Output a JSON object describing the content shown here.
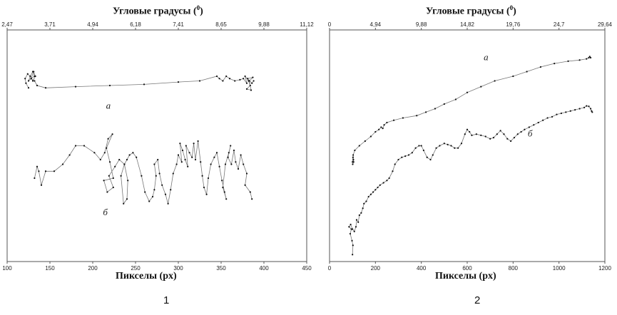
{
  "chart_data": [
    {
      "type": "line",
      "title": "Угловые градусы",
      "title_sup": "0",
      "xlabel": "Пикселы (px)",
      "figure_number": "1",
      "x_ticks": [
        "100",
        "150",
        "200",
        "250",
        "300",
        "350",
        "400",
        "450"
      ],
      "top_ticks": [
        "2,47",
        "3,71",
        "4,94",
        "6,18",
        "7,41",
        "8,65",
        "9,88",
        "11,12"
      ],
      "xlim": [
        100,
        450
      ],
      "ylim": [
        0,
        1
      ],
      "grid": false,
      "series": [
        {
          "label": "а",
          "points": [
            [
              125,
              0.75
            ],
            [
              122,
              0.77
            ],
            [
              121,
              0.79
            ],
            [
              124,
              0.81
            ],
            [
              127,
              0.8
            ],
            [
              125,
              0.78
            ],
            [
              128,
              0.79
            ],
            [
              132,
              0.8
            ],
            [
              130,
              0.82
            ],
            [
              127,
              0.8
            ],
            [
              130,
              0.78
            ],
            [
              133,
              0.8
            ],
            [
              131,
              0.82
            ],
            [
              128,
              0.79
            ],
            [
              132,
              0.78
            ],
            [
              135,
              0.76
            ],
            [
              145,
              0.75
            ],
            [
              180,
              0.755
            ],
            [
              220,
              0.76
            ],
            [
              260,
              0.765
            ],
            [
              300,
              0.775
            ],
            [
              325,
              0.78
            ],
            [
              345,
              0.8
            ],
            [
              348,
              0.79
            ],
            [
              352,
              0.78
            ],
            [
              356,
              0.8
            ],
            [
              360,
              0.79
            ],
            [
              366,
              0.78
            ],
            [
              372,
              0.785
            ],
            [
              376,
              0.79
            ],
            [
              380,
              0.77
            ],
            [
              378,
              0.8
            ],
            [
              382,
              0.78
            ],
            [
              384,
              0.76
            ],
            [
              380,
              0.745
            ],
            [
              385,
              0.74
            ],
            [
              383,
              0.78
            ],
            [
              387,
              0.795
            ],
            [
              381,
              0.79
            ],
            [
              386,
              0.77
            ],
            [
              388,
              0.78
            ]
          ]
        },
        {
          "label": "б",
          "points": [
            [
              132,
              0.36
            ],
            [
              135,
              0.41
            ],
            [
              137,
              0.39
            ],
            [
              140,
              0.33
            ],
            [
              145,
              0.39
            ],
            [
              155,
              0.39
            ],
            [
              165,
              0.42
            ],
            [
              173,
              0.46
            ],
            [
              180,
              0.5
            ],
            [
              190,
              0.5
            ],
            [
              202,
              0.47
            ],
            [
              209,
              0.44
            ],
            [
              214,
              0.47
            ],
            [
              218,
              0.53
            ],
            [
              223,
              0.55
            ],
            [
              216,
              0.49
            ],
            [
              220,
              0.43
            ],
            [
              224,
              0.36
            ],
            [
              213,
              0.35
            ],
            [
              217,
              0.3
            ],
            [
              224,
              0.32
            ],
            [
              219,
              0.37
            ],
            [
              226,
              0.41
            ],
            [
              231,
              0.44
            ],
            [
              237,
              0.42
            ],
            [
              241,
              0.35
            ],
            [
              240,
              0.27
            ],
            [
              236,
              0.25
            ],
            [
              233,
              0.37
            ],
            [
              237,
              0.42
            ],
            [
              240,
              0.44
            ],
            [
              243,
              0.46
            ],
            [
              247,
              0.47
            ],
            [
              251,
              0.45
            ],
            [
              257,
              0.37
            ],
            [
              261,
              0.3
            ],
            [
              266,
              0.26
            ],
            [
              270,
              0.28
            ],
            [
              272,
              0.31
            ],
            [
              274,
              0.37
            ],
            [
              272,
              0.42
            ],
            [
              276,
              0.44
            ],
            [
              278,
              0.38
            ],
            [
              281,
              0.33
            ],
            [
              285,
              0.29
            ],
            [
              288,
              0.25
            ],
            [
              291,
              0.31
            ],
            [
              294,
              0.38
            ],
            [
              298,
              0.42
            ],
            [
              300,
              0.46
            ],
            [
              304,
              0.43
            ],
            [
              302,
              0.51
            ],
            [
              305,
              0.48
            ],
            [
              308,
              0.44
            ],
            [
              311,
              0.41
            ],
            [
              309,
              0.5
            ],
            [
              313,
              0.47
            ],
            [
              316,
              0.45
            ],
            [
              318,
              0.51
            ],
            [
              320,
              0.44
            ],
            [
              323,
              0.52
            ],
            [
              326,
              0.43
            ],
            [
              328,
              0.37
            ],
            [
              330,
              0.32
            ],
            [
              333,
              0.29
            ],
            [
              335,
              0.36
            ],
            [
              338,
              0.42
            ],
            [
              342,
              0.45
            ],
            [
              345,
              0.47
            ],
            [
              348,
              0.41
            ],
            [
              351,
              0.35
            ],
            [
              354,
              0.3
            ],
            [
              356,
              0.27
            ],
            [
              352,
              0.32
            ],
            [
              355,
              0.42
            ],
            [
              359,
              0.47
            ],
            [
              361,
              0.5
            ],
            [
              358,
              0.45
            ],
            [
              362,
              0.42
            ],
            [
              365,
              0.48
            ],
            [
              367,
              0.43
            ],
            [
              370,
              0.4
            ],
            [
              373,
              0.46
            ],
            [
              376,
              0.42
            ],
            [
              380,
              0.38
            ],
            [
              378,
              0.33
            ],
            [
              384,
              0.3
            ],
            [
              386,
              0.27
            ]
          ]
        }
      ]
    },
    {
      "type": "line",
      "title": "Угловые градусы",
      "title_sup": "0",
      "xlabel": "Пикселы (px)",
      "figure_number": "2",
      "x_ticks": [
        "0",
        "200",
        "400",
        "600",
        "800",
        "1000",
        "1200"
      ],
      "top_ticks": [
        "0",
        "4,94",
        "9,88",
        "14,82",
        "19,76",
        "24,7",
        "29,64"
      ],
      "xlim": [
        0,
        1200
      ],
      "ylim": [
        0,
        1
      ],
      "grid": false,
      "series": [
        {
          "label": "а",
          "points": [
            [
              100,
              0.43
            ],
            [
              102,
              0.45
            ],
            [
              104,
              0.44
            ],
            [
              101,
              0.42
            ],
            [
              105,
              0.43
            ],
            [
              103,
              0.46
            ],
            [
              110,
              0.48
            ],
            [
              130,
              0.5
            ],
            [
              155,
              0.52
            ],
            [
              180,
              0.54
            ],
            [
              200,
              0.56
            ],
            [
              215,
              0.57
            ],
            [
              225,
              0.58
            ],
            [
              232,
              0.575
            ],
            [
              238,
              0.59
            ],
            [
              250,
              0.6
            ],
            [
              280,
              0.61
            ],
            [
              320,
              0.62
            ],
            [
              380,
              0.63
            ],
            [
              420,
              0.645
            ],
            [
              460,
              0.66
            ],
            [
              500,
              0.68
            ],
            [
              550,
              0.7
            ],
            [
              600,
              0.73
            ],
            [
              660,
              0.755
            ],
            [
              720,
              0.78
            ],
            [
              800,
              0.8
            ],
            [
              860,
              0.82
            ],
            [
              920,
              0.84
            ],
            [
              980,
              0.855
            ],
            [
              1040,
              0.865
            ],
            [
              1090,
              0.87
            ],
            [
              1120,
              0.875
            ],
            [
              1130,
              0.88
            ],
            [
              1134,
              0.885
            ],
            [
              1138,
              0.88
            ]
          ]
        },
        {
          "label": "б",
          "points": [
            [
              100,
              0.03
            ],
            [
              102,
              0.07
            ],
            [
              98,
              0.09
            ],
            [
              90,
              0.12
            ],
            [
              95,
              0.14
            ],
            [
              85,
              0.15
            ],
            [
              92,
              0.16
            ],
            [
              100,
              0.14
            ],
            [
              108,
              0.13
            ],
            [
              115,
              0.15
            ],
            [
              118,
              0.18
            ],
            [
              125,
              0.17
            ],
            [
              130,
              0.2
            ],
            [
              138,
              0.21
            ],
            [
              145,
              0.23
            ],
            [
              150,
              0.25
            ],
            [
              160,
              0.26
            ],
            [
              170,
              0.28
            ],
            [
              180,
              0.29
            ],
            [
              190,
              0.3
            ],
            [
              200,
              0.31
            ],
            [
              210,
              0.32
            ],
            [
              220,
              0.33
            ],
            [
              235,
              0.34
            ],
            [
              250,
              0.35
            ],
            [
              260,
              0.36
            ],
            [
              275,
              0.39
            ],
            [
              285,
              0.42
            ],
            [
              300,
              0.44
            ],
            [
              315,
              0.45
            ],
            [
              330,
              0.455
            ],
            [
              345,
              0.46
            ],
            [
              360,
              0.47
            ],
            [
              375,
              0.49
            ],
            [
              390,
              0.5
            ],
            [
              400,
              0.5
            ],
            [
              410,
              0.48
            ],
            [
              425,
              0.45
            ],
            [
              440,
              0.44
            ],
            [
              450,
              0.46
            ],
            [
              465,
              0.49
            ],
            [
              480,
              0.5
            ],
            [
              500,
              0.51
            ],
            [
              515,
              0.505
            ],
            [
              530,
              0.5
            ],
            [
              545,
              0.49
            ],
            [
              560,
              0.49
            ],
            [
              575,
              0.51
            ],
            [
              590,
              0.55
            ],
            [
              600,
              0.57
            ],
            [
              610,
              0.56
            ],
            [
              620,
              0.545
            ],
            [
              640,
              0.55
            ],
            [
              660,
              0.545
            ],
            [
              680,
              0.54
            ],
            [
              700,
              0.53
            ],
            [
              715,
              0.535
            ],
            [
              730,
              0.55
            ],
            [
              745,
              0.565
            ],
            [
              760,
              0.55
            ],
            [
              775,
              0.53
            ],
            [
              790,
              0.52
            ],
            [
              805,
              0.535
            ],
            [
              820,
              0.55
            ],
            [
              835,
              0.56
            ],
            [
              850,
              0.57
            ],
            [
              870,
              0.58
            ],
            [
              890,
              0.59
            ],
            [
              910,
              0.6
            ],
            [
              930,
              0.61
            ],
            [
              950,
              0.62
            ],
            [
              970,
              0.625
            ],
            [
              990,
              0.635
            ],
            [
              1010,
              0.64
            ],
            [
              1030,
              0.645
            ],
            [
              1050,
              0.65
            ],
            [
              1070,
              0.655
            ],
            [
              1090,
              0.66
            ],
            [
              1110,
              0.665
            ],
            [
              1120,
              0.672
            ],
            [
              1130,
              0.67
            ],
            [
              1138,
              0.66
            ],
            [
              1142,
              0.65
            ],
            [
              1145,
              0.645
            ]
          ]
        }
      ]
    }
  ]
}
